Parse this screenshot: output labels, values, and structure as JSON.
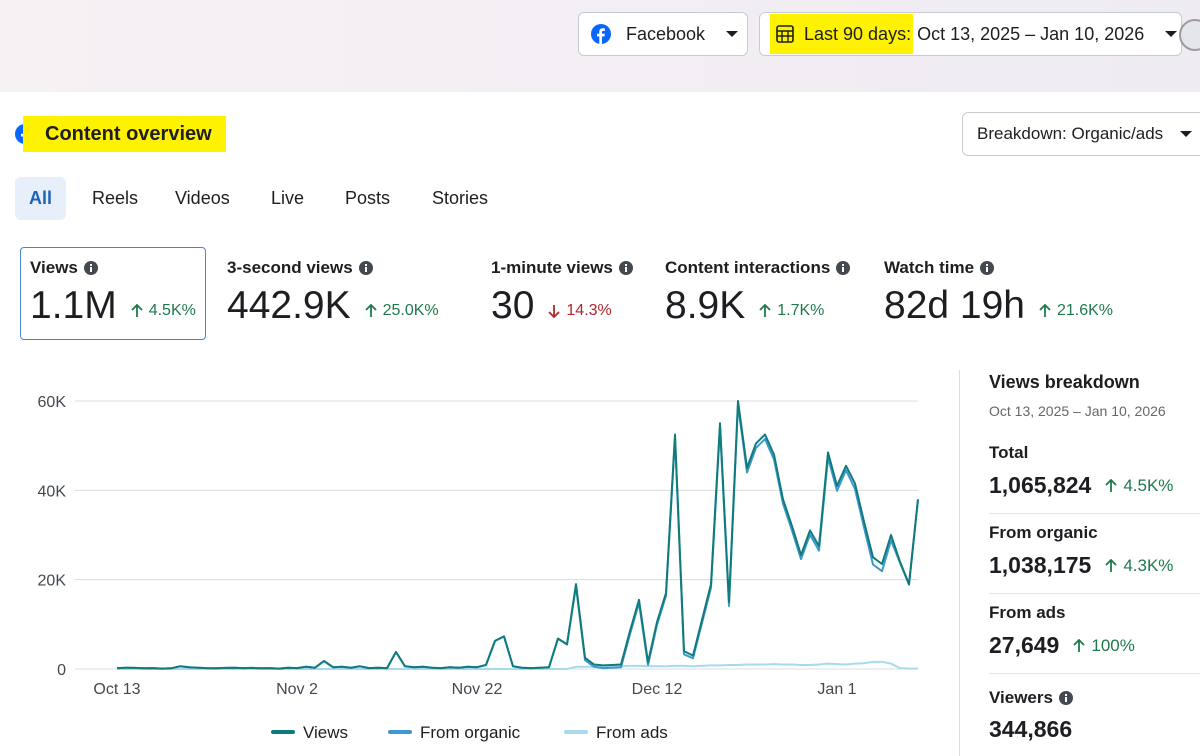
{
  "header": {
    "platform": "Facebook",
    "date_range_label": "Last 90 days:",
    "date_range": "Oct 13, 2025 – Jan 10, 2026"
  },
  "section": {
    "title": "Content overview",
    "breakdown": "Breakdown: Organic/ads"
  },
  "tabs": [
    {
      "label": "All",
      "selected": true
    },
    {
      "label": "Reels",
      "selected": false
    },
    {
      "label": "Videos",
      "selected": false
    },
    {
      "label": "Live",
      "selected": false
    },
    {
      "label": "Posts",
      "selected": false
    },
    {
      "label": "Stories",
      "selected": false
    }
  ],
  "metrics": [
    {
      "label": "Views",
      "value": "1.1M",
      "change": "4.5K%",
      "direction": "up",
      "selected": true
    },
    {
      "label": "3-second views",
      "value": "442.9K",
      "change": "25.0K%",
      "direction": "up",
      "selected": false
    },
    {
      "label": "1-minute views",
      "value": "30",
      "change": "14.3%",
      "direction": "down",
      "selected": false
    },
    {
      "label": "Content interactions",
      "value": "8.9K",
      "change": "1.7K%",
      "direction": "up",
      "selected": false
    },
    {
      "label": "Watch time",
      "value": "82d 19h",
      "change": "21.6K%",
      "direction": "up",
      "selected": false
    }
  ],
  "chart_data": {
    "type": "line",
    "categories": [
      "Oct 13",
      null,
      null,
      null,
      null,
      null,
      null,
      null,
      null,
      null,
      null,
      null,
      null,
      null,
      null,
      null,
      null,
      null,
      null,
      null,
      "Nov 2",
      null,
      null,
      null,
      null,
      null,
      null,
      null,
      null,
      null,
      null,
      null,
      null,
      null,
      null,
      null,
      null,
      null,
      null,
      null,
      "Nov 22",
      null,
      null,
      null,
      null,
      null,
      null,
      null,
      null,
      null,
      null,
      null,
      null,
      null,
      null,
      null,
      null,
      null,
      null,
      null,
      "Dec 12",
      null,
      null,
      null,
      null,
      null,
      null,
      null,
      null,
      null,
      null,
      null,
      null,
      null,
      null,
      null,
      null,
      null,
      null,
      null,
      "Jan 1",
      null,
      null,
      null,
      null,
      null,
      null,
      null,
      null,
      null
    ],
    "series": [
      {
        "name": "Views",
        "color": "#0f7b7a",
        "values": [
          200,
          300,
          250,
          150,
          200,
          100,
          150,
          600,
          400,
          300,
          200,
          150,
          250,
          300,
          200,
          250,
          150,
          200,
          100,
          300,
          200,
          500,
          300,
          1800,
          400,
          500,
          300,
          600,
          200,
          300,
          200,
          3800,
          600,
          400,
          500,
          300,
          200,
          400,
          300,
          500,
          400,
          900,
          6300,
          7300,
          600,
          300,
          200,
          300,
          400,
          6800,
          5500,
          19000,
          2500,
          1000,
          800,
          900,
          1000,
          8500,
          15500,
          1500,
          10500,
          17000,
          52500,
          4000,
          3000,
          11000,
          19000,
          55000,
          15000,
          60000,
          45000,
          50500,
          52500,
          48000,
          38000,
          32000,
          25500,
          31000,
          27500,
          48500,
          41000,
          45500,
          41500,
          33000,
          25000,
          23500,
          30000,
          24000,
          19000,
          38000
        ]
      },
      {
        "name": "From organic",
        "color": "#3d98cf",
        "values": [
          200,
          300,
          250,
          150,
          200,
          100,
          150,
          600,
          400,
          300,
          200,
          150,
          250,
          300,
          200,
          250,
          150,
          200,
          100,
          300,
          200,
          500,
          300,
          1800,
          400,
          500,
          300,
          600,
          200,
          300,
          200,
          3800,
          600,
          400,
          500,
          300,
          200,
          400,
          300,
          500,
          400,
          900,
          6300,
          7300,
          600,
          300,
          200,
          300,
          400,
          6800,
          5500,
          18500,
          2000,
          500,
          200,
          300,
          400,
          7800,
          14800,
          900,
          9900,
          16400,
          51800,
          3300,
          2400,
          10300,
          18200,
          54200,
          14100,
          59100,
          44000,
          49500,
          51500,
          46900,
          37000,
          31000,
          24600,
          30100,
          26500,
          47300,
          39900,
          44500,
          40300,
          31700,
          23400,
          21900,
          28800,
          23800,
          18900,
          37900
        ]
      },
      {
        "name": "From ads",
        "color": "#a9d9ef",
        "values": [
          0,
          0,
          0,
          0,
          0,
          0,
          0,
          0,
          0,
          0,
          0,
          0,
          0,
          0,
          0,
          0,
          0,
          0,
          0,
          0,
          0,
          0,
          0,
          0,
          0,
          0,
          0,
          0,
          0,
          0,
          0,
          0,
          0,
          0,
          0,
          0,
          0,
          0,
          0,
          0,
          0,
          0,
          0,
          0,
          0,
          0,
          0,
          0,
          0,
          0,
          0,
          500,
          500,
          500,
          600,
          600,
          600,
          700,
          700,
          600,
          600,
          600,
          700,
          700,
          600,
          700,
          800,
          800,
          900,
          900,
          1000,
          1000,
          1000,
          1100,
          1000,
          1000,
          900,
          900,
          1000,
          1200,
          1100,
          1000,
          1200,
          1300,
          1600,
          1600,
          1200,
          200,
          100,
          100
        ]
      }
    ],
    "ylim": [
      0,
      60000
    ],
    "yticks": [
      0,
      {
        "value": 20000,
        "label": "20K"
      },
      {
        "value": 40000,
        "label": "40K"
      },
      {
        "value": 60000,
        "label": "60K"
      }
    ],
    "grid": true
  },
  "breakdown": {
    "title": "Views breakdown",
    "date_range": "Oct 13, 2025 – Jan 10, 2026",
    "items": [
      {
        "label": "Total",
        "value": "1,065,824",
        "change": "4.5K%",
        "direction": "up"
      },
      {
        "label": "From organic",
        "value": "1,038,175",
        "change": "4.3K%",
        "direction": "up"
      },
      {
        "label": "From ads",
        "value": "27,649",
        "change": "100%",
        "direction": "up"
      }
    ],
    "viewers": {
      "label": "Viewers",
      "value": "344,866"
    }
  }
}
